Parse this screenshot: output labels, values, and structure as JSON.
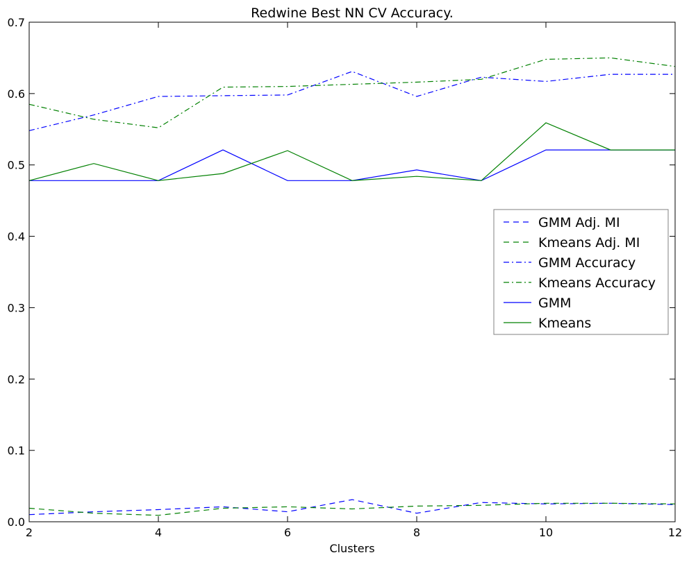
{
  "chart_data": {
    "type": "line",
    "title": "Redwine Best NN CV Accuracy.",
    "xlabel": "Clusters",
    "ylabel": "",
    "xlim": [
      2,
      12
    ],
    "ylim": [
      0.0,
      0.7
    ],
    "xticks": [
      "2",
      "4",
      "6",
      "8",
      "10",
      "12"
    ],
    "yticks": [
      "0.0",
      "0.1",
      "0.2",
      "0.3",
      "0.4",
      "0.5",
      "0.6",
      "0.7"
    ],
    "grid": false,
    "legend_position": "center-right",
    "x": [
      2,
      3,
      4,
      5,
      6,
      7,
      8,
      9,
      10,
      11,
      12
    ],
    "series": [
      {
        "name": "GMM Adj. MI",
        "color": "#0000ff",
        "style": "dashed",
        "values": [
          0.01,
          0.014,
          0.017,
          0.021,
          0.014,
          0.031,
          0.012,
          0.027,
          0.025,
          0.026,
          0.024
        ]
      },
      {
        "name": "Kmeans Adj. MI",
        "color": "#008000",
        "style": "dashed",
        "values": [
          0.019,
          0.012,
          0.009,
          0.019,
          0.021,
          0.018,
          0.022,
          0.023,
          0.026,
          0.026,
          0.025
        ]
      },
      {
        "name": "GMM Accuracy",
        "color": "#0000ff",
        "style": "dashdot",
        "values": [
          0.548,
          0.57,
          0.596,
          0.597,
          0.598,
          0.631,
          0.596,
          0.623,
          0.617,
          0.627,
          0.627
        ]
      },
      {
        "name": "Kmeans Accuracy",
        "color": "#008000",
        "style": "dashdot",
        "values": [
          0.585,
          0.564,
          0.552,
          0.609,
          0.61,
          0.613,
          0.616,
          0.62,
          0.648,
          0.65,
          0.638
        ]
      },
      {
        "name": "GMM",
        "color": "#0000ff",
        "style": "solid",
        "values": [
          0.478,
          0.478,
          0.478,
          0.521,
          0.478,
          0.478,
          0.493,
          0.478,
          0.521,
          0.521,
          0.521
        ]
      },
      {
        "name": "Kmeans",
        "color": "#008000",
        "style": "solid",
        "values": [
          0.478,
          0.502,
          0.478,
          0.488,
          0.52,
          0.478,
          0.484,
          0.478,
          0.559,
          0.521,
          0.521
        ]
      }
    ]
  }
}
